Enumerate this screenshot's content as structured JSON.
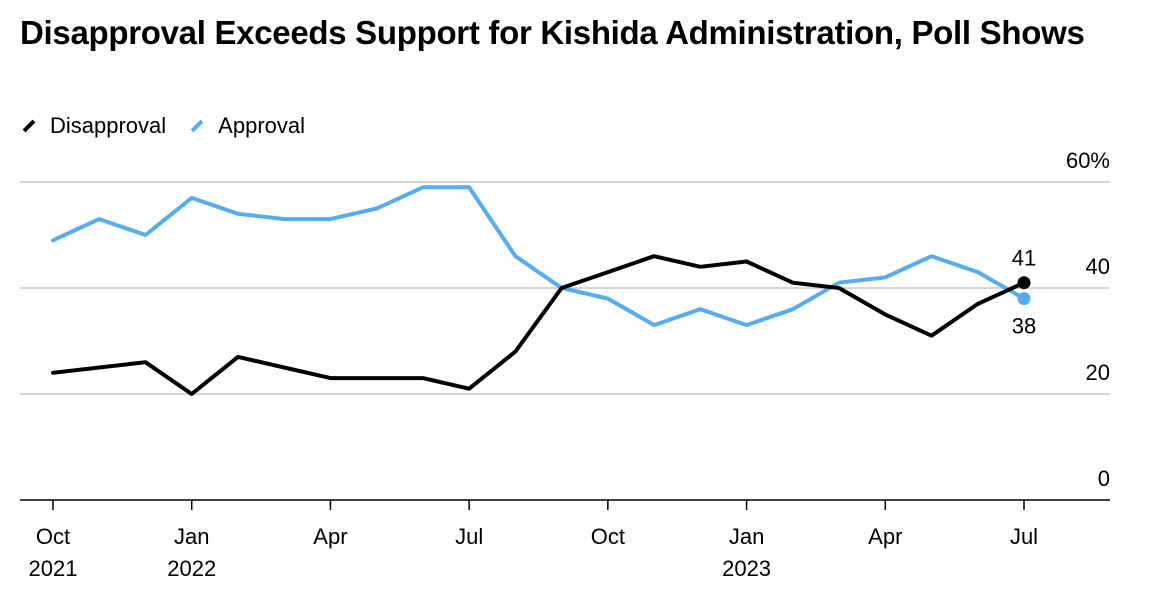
{
  "chart_data": {
    "type": "line",
    "title": "Disapproval Exceeds Support for Kishida Administration, Poll Shows",
    "xlabel": "",
    "ylabel": "",
    "ylim": [
      0,
      60
    ],
    "y_ticks": [
      {
        "value": 60,
        "label": "60%"
      },
      {
        "value": 40,
        "label": "40"
      },
      {
        "value": 20,
        "label": "20"
      },
      {
        "value": 0,
        "label": "0"
      }
    ],
    "x_ticks": [
      {
        "month": "2021-10",
        "line1": "Oct",
        "line2": "2021"
      },
      {
        "month": "2022-01",
        "line1": "Jan",
        "line2": "2022"
      },
      {
        "month": "2022-04",
        "line1": "Apr",
        "line2": ""
      },
      {
        "month": "2022-07",
        "line1": "Jul",
        "line2": ""
      },
      {
        "month": "2022-10",
        "line1": "Oct",
        "line2": ""
      },
      {
        "month": "2023-01",
        "line1": "Jan",
        "line2": "2023"
      },
      {
        "month": "2023-04",
        "line1": "Apr",
        "line2": ""
      },
      {
        "month": "2023-07",
        "line1": "Jul",
        "line2": ""
      }
    ],
    "x_range": [
      "2021-10",
      "2023-08"
    ],
    "grid": true,
    "legend_position": "top-left",
    "series": [
      {
        "name": "Disapproval",
        "color": "#000000",
        "points": [
          [
            "2021-10",
            24
          ],
          [
            "2021-11",
            25
          ],
          [
            "2021-12",
            26
          ],
          [
            "2022-01",
            20
          ],
          [
            "2022-02",
            27
          ],
          [
            "2022-03",
            25
          ],
          [
            "2022-04",
            23
          ],
          [
            "2022-05",
            23
          ],
          [
            "2022-06",
            23
          ],
          [
            "2022-07",
            21
          ],
          [
            "2022-08",
            28
          ],
          [
            "2022-09",
            40
          ],
          [
            "2022-10",
            43
          ],
          [
            "2022-11",
            46
          ],
          [
            "2022-12",
            44
          ],
          [
            "2023-01",
            45
          ],
          [
            "2023-02",
            41
          ],
          [
            "2023-03",
            40
          ],
          [
            "2023-04",
            35
          ],
          [
            "2023-05",
            31
          ],
          [
            "2023-06",
            37
          ],
          [
            "2023-07",
            41
          ]
        ],
        "end_label": "41"
      },
      {
        "name": "Approval",
        "color": "#55acf1",
        "points": [
          [
            "2021-10",
            49
          ],
          [
            "2021-11",
            53
          ],
          [
            "2021-12",
            50
          ],
          [
            "2022-01",
            57
          ],
          [
            "2022-02",
            54
          ],
          [
            "2022-03",
            53
          ],
          [
            "2022-04",
            53
          ],
          [
            "2022-05",
            55
          ],
          [
            "2022-06",
            59
          ],
          [
            "2022-07",
            59
          ],
          [
            "2022-08",
            46
          ],
          [
            "2022-09",
            40
          ],
          [
            "2022-10",
            38
          ],
          [
            "2022-11",
            33
          ],
          [
            "2022-12",
            36
          ],
          [
            "2023-01",
            33
          ],
          [
            "2023-02",
            36
          ],
          [
            "2023-03",
            41
          ],
          [
            "2023-04",
            42
          ],
          [
            "2023-05",
            46
          ],
          [
            "2023-06",
            43
          ],
          [
            "2023-07",
            38
          ]
        ],
        "end_label": "38"
      }
    ]
  }
}
